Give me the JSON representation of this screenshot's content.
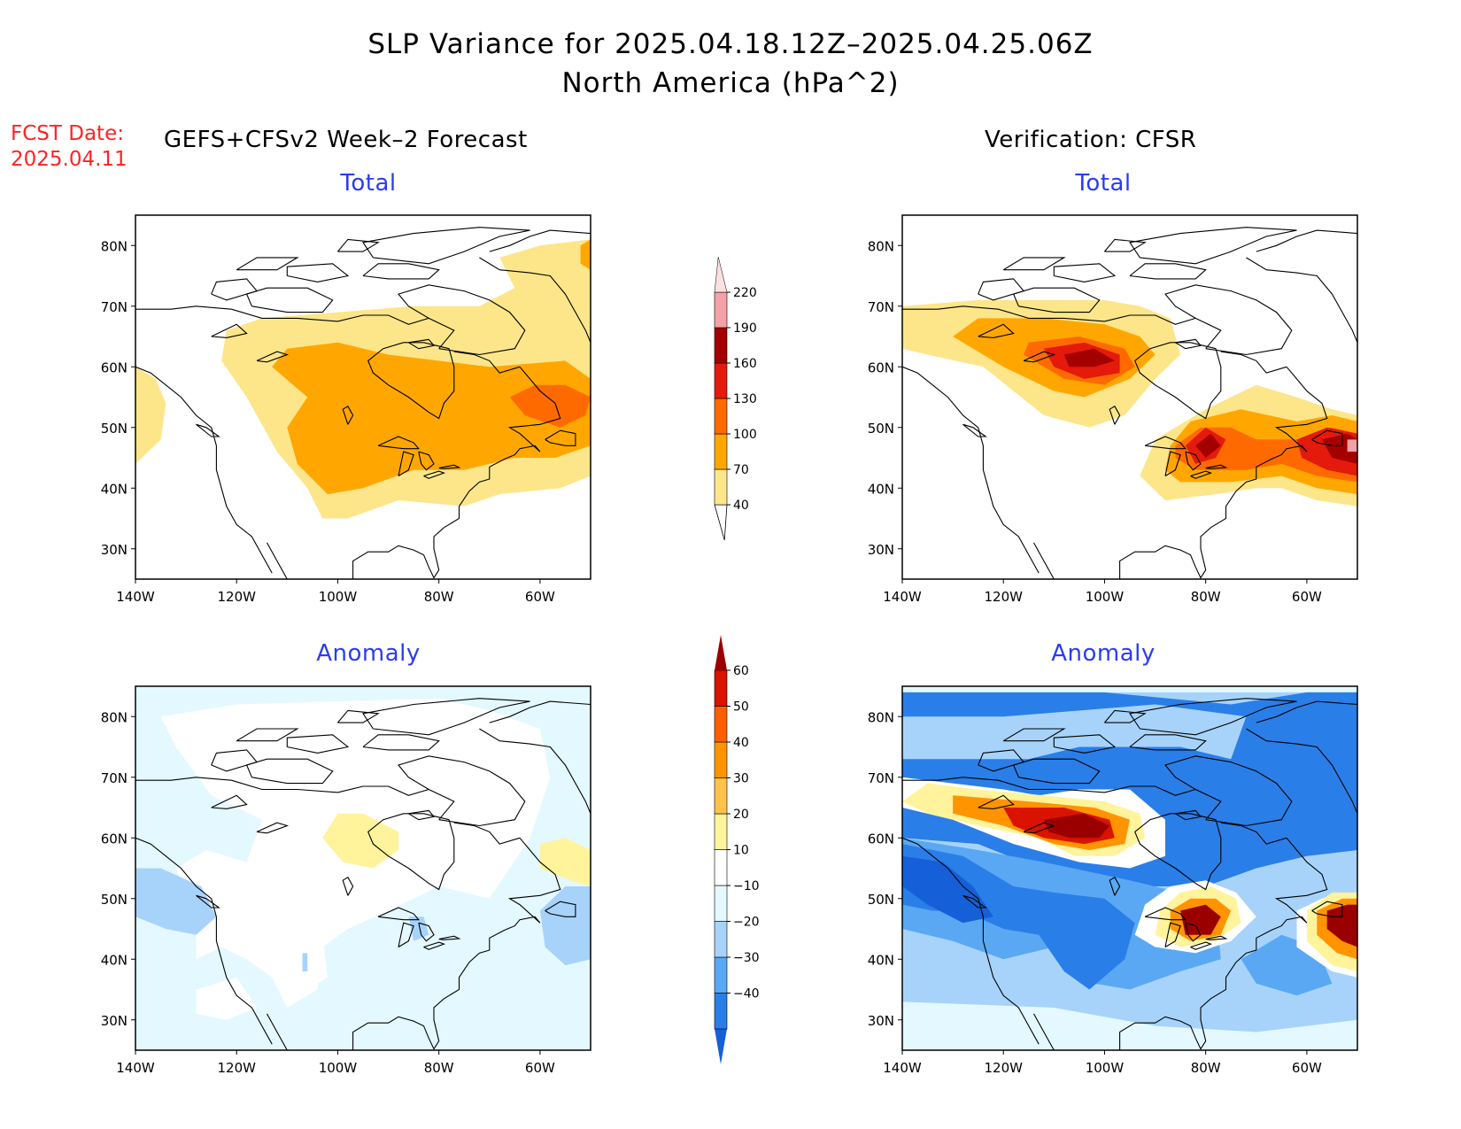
{
  "title": "SLP Variance for 2025.04.18.12Z–2025.04.25.06Z",
  "subtitle": "North America (hPa^2)",
  "fcst_date_label": "FCST Date:",
  "fcst_date_value": "2025.04.11",
  "left_heading": "GEFS+CFSv2 Week–2 Forecast",
  "right_heading": "Verification: CFSR",
  "panels": [
    {
      "title": "Total",
      "column": "forecast",
      "field": "total"
    },
    {
      "title": "Total",
      "column": "verification",
      "field": "total"
    },
    {
      "title": "Anomaly",
      "column": "forecast",
      "field": "anomaly"
    },
    {
      "title": "Anomaly",
      "column": "verification",
      "field": "anomaly"
    }
  ],
  "map_axes": {
    "lon_labels": [
      "140W",
      "120W",
      "100W",
      "80W",
      "60W"
    ],
    "lat_labels": [
      "30N",
      "40N",
      "50N",
      "60N",
      "70N",
      "80N"
    ],
    "lon_values": [
      -140,
      -120,
      -100,
      -80,
      -60
    ],
    "lat_values": [
      30,
      40,
      50,
      60,
      70,
      80
    ],
    "lon_range": [
      -140,
      -50
    ],
    "lat_range": [
      25,
      85
    ]
  },
  "total_colorbar": {
    "labels": [
      "40",
      "70",
      "100",
      "130",
      "160",
      "190",
      "220"
    ],
    "colors": [
      "#fde68a",
      "#ffa700",
      "#ff6a00",
      "#e31a0c",
      "#a40000",
      "#f4a1a7",
      "#fde0e2"
    ]
  },
  "anomaly_colorbar": {
    "labels": [
      "−40",
      "−30",
      "−20",
      "−10",
      "10",
      "20",
      "30",
      "40",
      "50",
      "60"
    ],
    "colors": [
      "#1560d8",
      "#2a7ee8",
      "#5aa8f3",
      "#a7d3fb",
      "#e4f8ff",
      "#ffffff",
      "#fff39c",
      "#ffc24a",
      "#ff9400",
      "#ff5e00",
      "#d91300",
      "#9b0000"
    ]
  },
  "chart_data": [
    {
      "type": "heatmap",
      "title": "Total",
      "source": "GEFS+CFSv2 Week–2 Forecast",
      "levels": [
        40,
        70,
        100,
        130,
        160,
        190,
        220
      ],
      "features": [
        {
          "lon": -95,
          "lat": 62,
          "level": 40
        },
        {
          "lon": -60,
          "lat": 73,
          "level": 40
        },
        {
          "lon": -133,
          "lat": 50,
          "level": 40
        },
        {
          "lon": -85,
          "lat": 55,
          "level": 70
        },
        {
          "lon": -58,
          "lat": 55,
          "level": 100
        }
      ]
    },
    {
      "type": "heatmap",
      "title": "Total",
      "source": "Verification: CFSR",
      "levels": [
        40,
        70,
        100,
        130,
        160,
        190,
        220
      ],
      "features": [
        {
          "lon": -103,
          "lat": 61,
          "level": 160
        },
        {
          "lon": -80,
          "lat": 47,
          "level": 160
        },
        {
          "lon": -52,
          "lat": 47,
          "level": 190
        }
      ]
    },
    {
      "type": "heatmap",
      "title": "Anomaly",
      "source": "GEFS+CFSv2 Week–2 Forecast",
      "levels": [
        -40,
        -30,
        -20,
        -10,
        10,
        20,
        30,
        40,
        50,
        60
      ],
      "features": [
        {
          "lon": -90,
          "lat": 60,
          "level": 10
        },
        {
          "lon": -56,
          "lat": 56,
          "level": 10
        },
        {
          "lon": -133,
          "lat": 49,
          "level": -20
        },
        {
          "lon": -55,
          "lat": 43,
          "level": -20
        },
        {
          "lon": -80,
          "lat": 45,
          "level": -20
        }
      ]
    },
    {
      "type": "heatmap",
      "title": "Anomaly",
      "source": "Verification: CFSR",
      "levels": [
        -40,
        -30,
        -20,
        -10,
        10,
        20,
        30,
        40,
        50,
        60
      ],
      "features": [
        {
          "lon": -103,
          "lat": 61,
          "level": 60
        },
        {
          "lon": -80,
          "lat": 46,
          "level": 60
        },
        {
          "lon": -52,
          "lat": 47,
          "level": 60
        },
        {
          "lon": -135,
          "lat": 55,
          "level": -40
        },
        {
          "lon": -60,
          "lat": 65,
          "level": -40
        }
      ]
    }
  ]
}
